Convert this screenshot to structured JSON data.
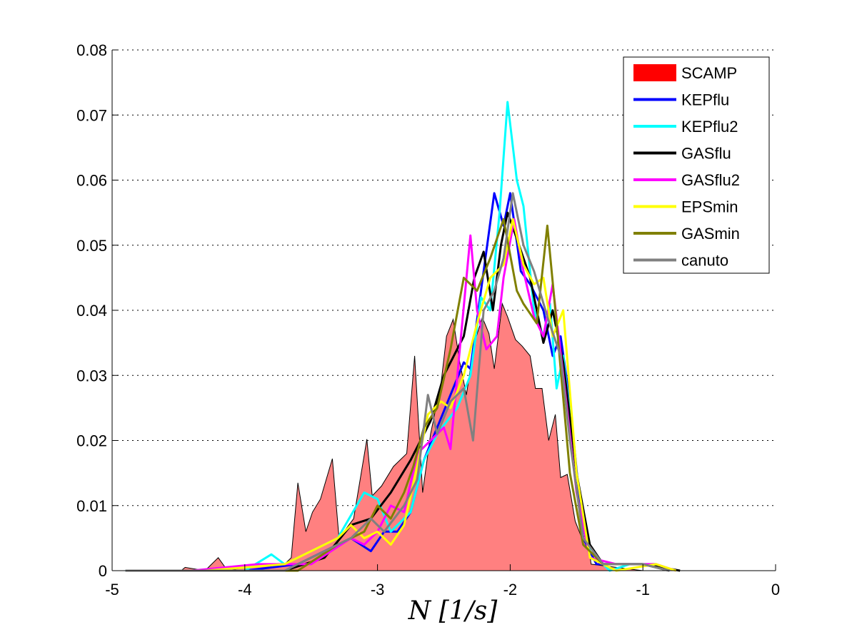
{
  "chart_data": {
    "type": "area+line",
    "title": "",
    "xlabel": "N [1/s]",
    "ylabel": "",
    "xlim": [
      -5,
      0
    ],
    "ylim": [
      0,
      0.08
    ],
    "xticks": [
      "-5",
      "-4",
      "-3",
      "-2",
      "-1",
      "0"
    ],
    "xtick_values": [
      -5,
      -4,
      -3,
      -2,
      -1,
      0
    ],
    "yticks": [
      "0",
      "0.01",
      "0.02",
      "0.03",
      "0.04",
      "0.05",
      "0.06",
      "0.07",
      "0.08"
    ],
    "ytick_values": [
      0,
      0.01,
      0.02,
      0.03,
      0.04,
      0.05,
      0.06,
      0.07,
      0.08
    ],
    "grid": "horizontal dotted",
    "legend_position": "top-right",
    "series": [
      {
        "name": "SCAMP",
        "kind": "area",
        "color": "#ff0000",
        "fill": "#ff8080",
        "x": [
          -5,
          -4.48,
          -4.45,
          -4.3,
          -4.2,
          -4.13,
          -4.0,
          -3.9,
          -3.7,
          -3.65,
          -3.6,
          -3.54,
          -3.49,
          -3.43,
          -3.34,
          -3.29,
          -3.18,
          -3.08,
          -3.04,
          -2.97,
          -2.88,
          -2.78,
          -2.72,
          -2.66,
          -2.6,
          -2.52,
          -2.48,
          -2.43,
          -2.38,
          -2.33,
          -2.27,
          -2.21,
          -2.16,
          -2.12,
          -2.06,
          -2.02,
          -1.96,
          -1.91,
          -1.85,
          -1.81,
          -1.76,
          -1.71,
          -1.66,
          -1.62,
          -1.57,
          -1.51,
          -1.46,
          -1.42,
          -1.39,
          -1.2,
          -1.0,
          0
        ],
        "y": [
          0,
          0,
          0.0005,
          0,
          0.002,
          0,
          0.0005,
          0.001,
          0.001,
          0.002,
          0.0135,
          0.006,
          0.009,
          0.011,
          0.0172,
          0.005,
          0.008,
          0.0202,
          0.0115,
          0.013,
          0.016,
          0.018,
          0.033,
          0.012,
          0.021,
          0.029,
          0.036,
          0.0386,
          0.032,
          0.027,
          0.035,
          0.0389,
          0.0364,
          0.031,
          0.041,
          0.039,
          0.0355,
          0.0345,
          0.033,
          0.028,
          0.028,
          0.02,
          0.024,
          0.0143,
          0.0148,
          0.0076,
          0.005,
          0.0057,
          0.001,
          0.0005,
          0,
          0
        ]
      },
      {
        "name": "KEPflu",
        "kind": "line",
        "color": "#0000ff",
        "x": [
          -4.6,
          -4.0,
          -3.6,
          -3.4,
          -3.2,
          -3.05,
          -2.95,
          -2.85,
          -2.75,
          -2.65,
          -2.55,
          -2.45,
          -2.35,
          -2.3,
          -2.2,
          -2.12,
          -2.05,
          -2.0,
          -1.92,
          -1.85,
          -1.75,
          -1.68,
          -1.62,
          -1.55,
          -1.45,
          -1.35,
          -1.2,
          -1.0,
          -0.8
        ],
        "y": [
          0,
          0,
          0.001,
          0.003,
          0.005,
          0.003,
          0.006,
          0.006,
          0.009,
          0.017,
          0.022,
          0.027,
          0.032,
          0.031,
          0.046,
          0.058,
          0.053,
          0.058,
          0.046,
          0.044,
          0.04,
          0.033,
          0.036,
          0.026,
          0.005,
          0.001,
          0.001,
          0.001,
          0
        ]
      },
      {
        "name": "KEPflu2",
        "kind": "line",
        "color": "#00ffff",
        "x": [
          -4.9,
          -4.0,
          -3.8,
          -3.7,
          -3.3,
          -3.1,
          -3.0,
          -2.9,
          -2.75,
          -2.65,
          -2.55,
          -2.4,
          -2.3,
          -2.22,
          -2.15,
          -2.08,
          -2.02,
          -1.95,
          -1.9,
          -1.82,
          -1.75,
          -1.7,
          -1.65,
          -1.6,
          -1.5,
          -1.4,
          -1.25,
          -1.1,
          -0.9,
          -0.8
        ],
        "y": [
          0,
          0,
          0.0025,
          0.001,
          0.005,
          0.012,
          0.011,
          0.006,
          0.009,
          0.017,
          0.021,
          0.025,
          0.03,
          0.042,
          0.04,
          0.055,
          0.072,
          0.06,
          0.056,
          0.04,
          0.036,
          0.041,
          0.028,
          0.033,
          0.015,
          0.003,
          0,
          0.001,
          0.001,
          0
        ]
      },
      {
        "name": "GASflu",
        "kind": "line",
        "color": "#000000",
        "x": [
          -3.7,
          -3.4,
          -3.2,
          -3.05,
          -2.9,
          -2.75,
          -2.6,
          -2.5,
          -2.4,
          -2.35,
          -2.27,
          -2.2,
          -2.13,
          -2.07,
          -2.02,
          -1.95,
          -1.85,
          -1.75,
          -1.68,
          -1.6,
          -1.5,
          -1.4,
          -1.3,
          -1.0,
          -0.72
        ],
        "y": [
          0,
          0.002,
          0.007,
          0.008,
          0.012,
          0.017,
          0.023,
          0.03,
          0.034,
          0.036,
          0.045,
          0.049,
          0.04,
          0.05,
          0.055,
          0.051,
          0.045,
          0.035,
          0.04,
          0.032,
          0.015,
          0.004,
          0.001,
          0.001,
          0
        ]
      },
      {
        "name": "GASflu2",
        "kind": "line",
        "color": "#ff00ff",
        "x": [
          -4.4,
          -3.9,
          -3.5,
          -3.2,
          -3.1,
          -3.0,
          -2.9,
          -2.8,
          -2.7,
          -2.6,
          -2.5,
          -2.45,
          -2.38,
          -2.3,
          -2.25,
          -2.18,
          -2.1,
          -2.05,
          -1.97,
          -1.9,
          -1.82,
          -1.75,
          -1.68,
          -1.6,
          -1.5,
          -1.4,
          -1.2,
          -0.9,
          -0.75
        ],
        "y": [
          0,
          0.001,
          0.001,
          0.005,
          0.004,
          0.006,
          0.01,
          0.009,
          0.018,
          0.02,
          0.022,
          0.0187,
          0.034,
          0.0515,
          0.04,
          0.034,
          0.036,
          0.045,
          0.054,
          0.046,
          0.039,
          0.036,
          0.044,
          0.03,
          0.012,
          0.002,
          0.001,
          0.001,
          0
        ]
      },
      {
        "name": "EPSmin",
        "kind": "line",
        "color": "#ffff00",
        "x": [
          -4.3,
          -3.7,
          -3.3,
          -3.2,
          -3.1,
          -3.0,
          -2.9,
          -2.8,
          -2.7,
          -2.62,
          -2.52,
          -2.45,
          -2.35,
          -2.25,
          -2.15,
          -2.05,
          -1.98,
          -1.9,
          -1.82,
          -1.75,
          -1.68,
          -1.6,
          -1.5,
          -1.4,
          -1.2,
          -0.9,
          -0.75
        ],
        "y": [
          0,
          0.001,
          0.005,
          0.007,
          0.005,
          0.006,
          0.004,
          0.007,
          0.016,
          0.024,
          0.026,
          0.025,
          0.03,
          0.038,
          0.045,
          0.047,
          0.054,
          0.047,
          0.044,
          0.045,
          0.036,
          0.04,
          0.015,
          0.002,
          0,
          0.001,
          0
        ]
      },
      {
        "name": "GASmin",
        "kind": "line",
        "color": "#808000",
        "x": [
          -4.0,
          -3.6,
          -3.3,
          -3.1,
          -3.0,
          -2.9,
          -2.8,
          -2.73,
          -2.65,
          -2.55,
          -2.45,
          -2.35,
          -2.25,
          -2.15,
          -2.05,
          -1.95,
          -1.9,
          -1.8,
          -1.72,
          -1.65,
          -1.55,
          -1.45,
          -1.3,
          -1.0,
          -0.8
        ],
        "y": [
          0,
          0,
          0.004,
          0.006,
          0.01,
          0.008,
          0.012,
          0.016,
          0.022,
          0.025,
          0.034,
          0.045,
          0.043,
          0.048,
          0.054,
          0.043,
          0.041,
          0.038,
          0.053,
          0.038,
          0.015,
          0.004,
          0.001,
          0.001,
          0
        ]
      },
      {
        "name": "canuto",
        "kind": "line",
        "color": "#808080",
        "x": [
          -4.9,
          -3.7,
          -3.4,
          -3.2,
          -3.05,
          -2.95,
          -2.8,
          -2.7,
          -2.62,
          -2.55,
          -2.45,
          -2.35,
          -2.28,
          -2.2,
          -2.12,
          -2.05,
          -1.98,
          -1.9,
          -1.82,
          -1.72,
          -1.62,
          -1.55,
          -1.45,
          -1.3,
          -1.0,
          -0.8
        ],
        "y": [
          0,
          0,
          0.003,
          0.005,
          0.008,
          0.006,
          0.01,
          0.014,
          0.027,
          0.021,
          0.026,
          0.028,
          0.02,
          0.04,
          0.043,
          0.048,
          0.058,
          0.05,
          0.046,
          0.039,
          0.033,
          0.02,
          0.005,
          0.001,
          0.001,
          0
        ]
      }
    ]
  }
}
